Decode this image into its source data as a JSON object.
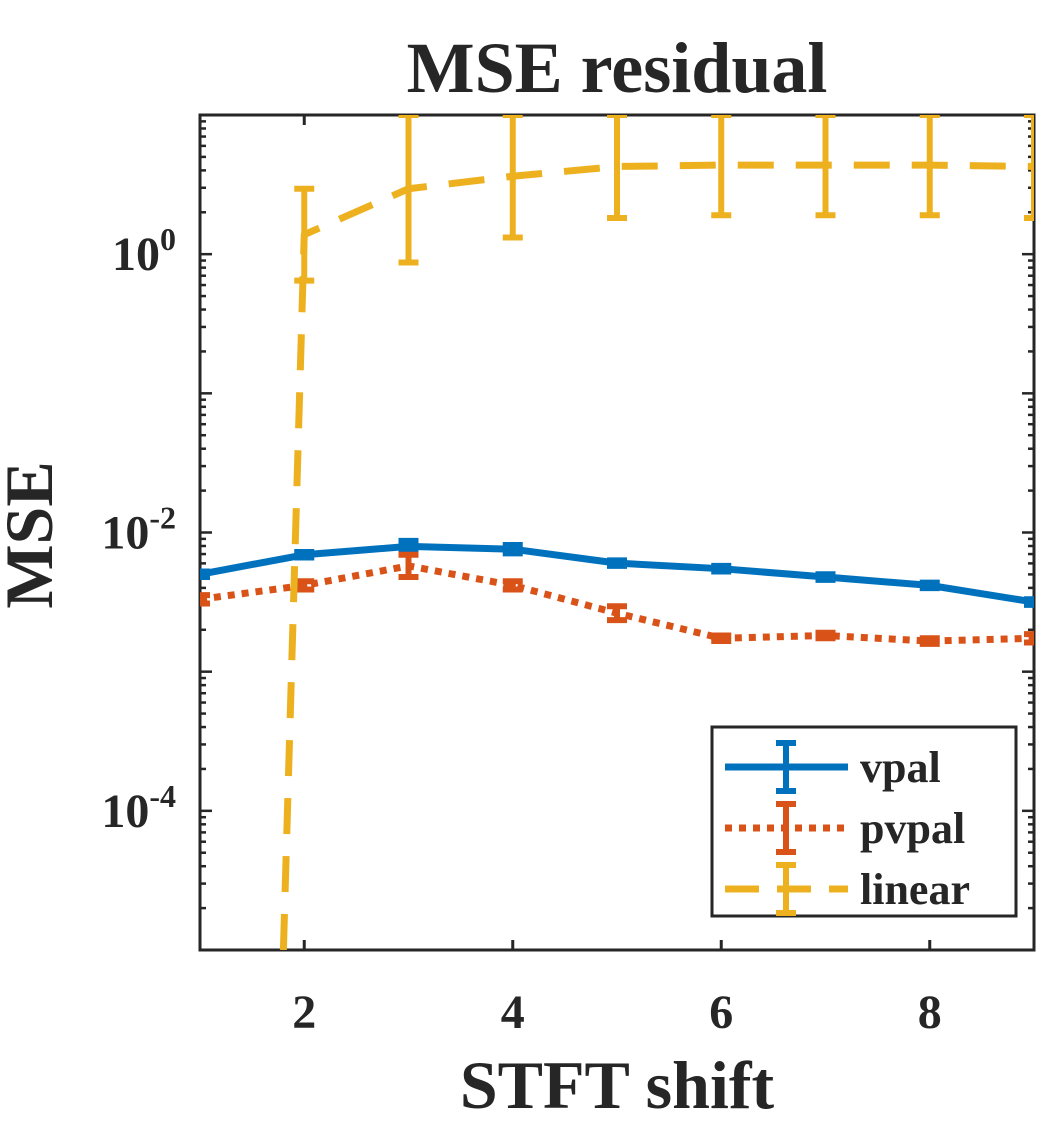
{
  "chart_data": {
    "type": "line",
    "title": "MSE residual",
    "xlabel": "STFT shift",
    "ylabel": "MSE",
    "xlim": [
      1,
      9
    ],
    "ylim_log10": [
      -5,
      1
    ],
    "yscale": "log",
    "xticks": [
      {
        "value": 2,
        "label": "2"
      },
      {
        "value": 4,
        "label": "4"
      },
      {
        "value": 6,
        "label": "6"
      },
      {
        "value": 8,
        "label": "8"
      }
    ],
    "yticks": [
      {
        "exp": 0,
        "base": "10",
        "sup": "0"
      },
      {
        "exp": -2,
        "base": "10",
        "sup": "-2"
      },
      {
        "exp": -4,
        "base": "10",
        "sup": "-4"
      }
    ],
    "legend_position": "bottom-right",
    "series": [
      {
        "name": "vpal",
        "color": "#0072BD",
        "style": "solid",
        "x": [
          1,
          2,
          3,
          4,
          5,
          6,
          7,
          8,
          9
        ],
        "log10_y": [
          -2.3,
          -2.16,
          -2.1,
          -2.12,
          -2.22,
          -2.26,
          -2.32,
          -2.38,
          -2.5
        ],
        "log10_err": [
          0.02,
          0.02,
          0.04,
          0.03,
          0.02,
          0.02,
          0.02,
          0.02,
          0.02
        ]
      },
      {
        "name": "pvpal",
        "color": "#D95319",
        "style": "dotted",
        "x": [
          1,
          2,
          3,
          4,
          5,
          6,
          7,
          8,
          9
        ],
        "log10_y": [
          -2.48,
          -2.38,
          -2.24,
          -2.38,
          -2.58,
          -2.76,
          -2.74,
          -2.78,
          -2.76
        ],
        "log10_err": [
          0.03,
          0.03,
          0.08,
          0.03,
          0.05,
          0.02,
          0.02,
          0.02,
          0.03
        ]
      },
      {
        "name": "linear",
        "color": "#EDB120",
        "style": "dashed",
        "x": [
          1.8,
          2,
          3,
          4,
          5,
          6,
          7,
          8,
          9
        ],
        "log10_y": [
          -5.0,
          0.14,
          0.47,
          0.56,
          0.63,
          0.64,
          0.64,
          0.64,
          0.63
        ],
        "log10_err": [
          0,
          0.33,
          0.53,
          0.44,
          0.37,
          0.36,
          0.36,
          0.36,
          0.37
        ]
      }
    ]
  }
}
